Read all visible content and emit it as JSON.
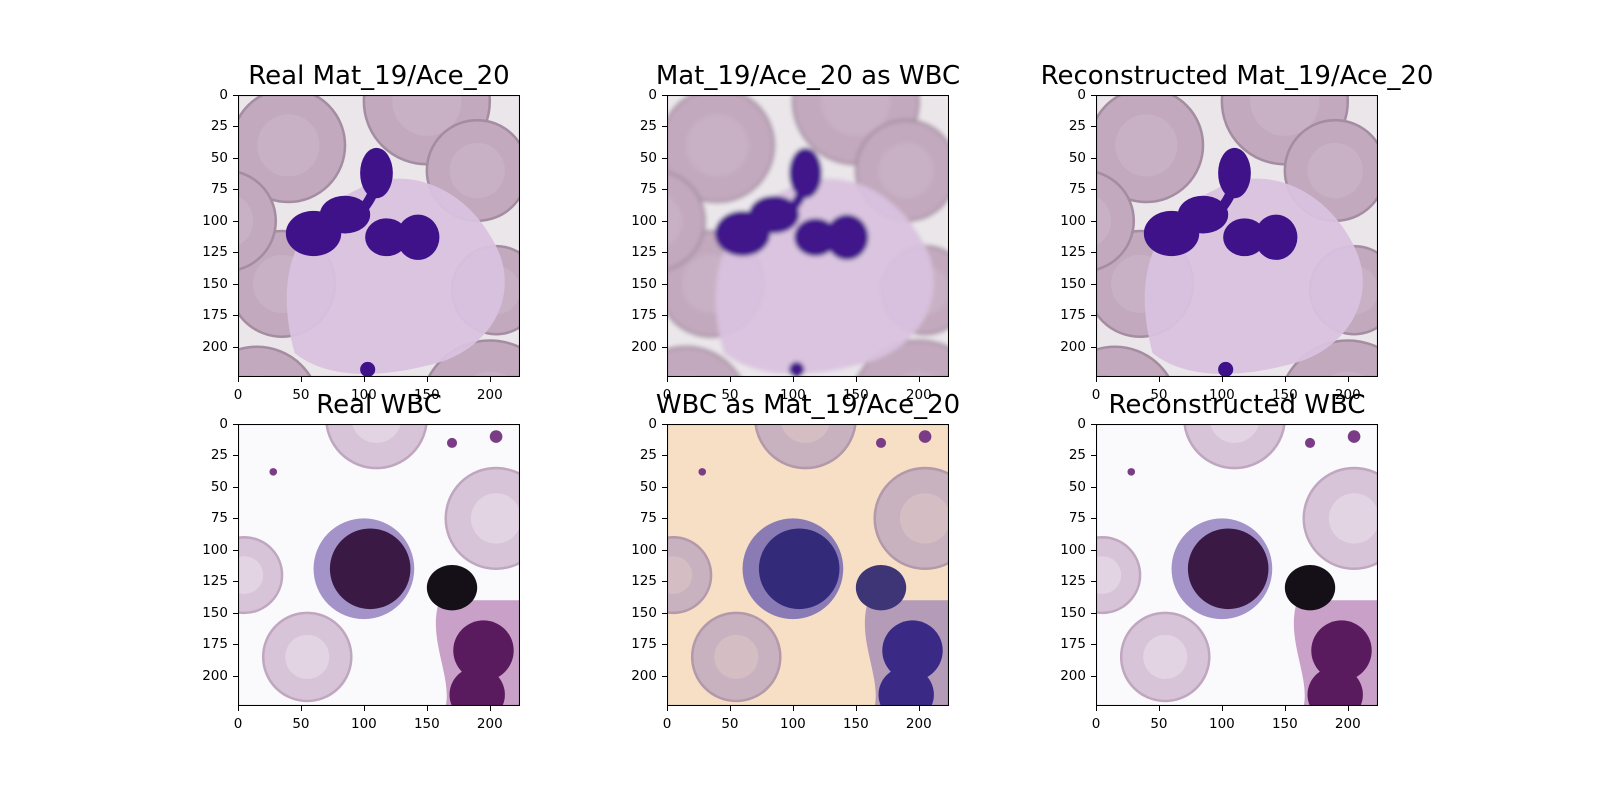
{
  "panels": [
    {
      "title": "Real Mat_19/Ace_20",
      "icon": "neutrophil-micrograph"
    },
    {
      "title": "Mat_19/Ace_20 as WBC",
      "icon": "neutrophil-micrograph-blurred"
    },
    {
      "title": "Reconstructed Mat_19/Ace_20",
      "icon": "neutrophil-micrograph"
    },
    {
      "title": "Real WBC",
      "icon": "lymphocyte-micrograph"
    },
    {
      "title": "WBC as Mat_19/Ace_20",
      "icon": "lymphocyte-micrograph-beige"
    },
    {
      "title": "Reconstructed WBC",
      "icon": "lymphocyte-micrograph"
    }
  ],
  "y_ticks": [
    "0",
    "25",
    "50",
    "75",
    "100",
    "125",
    "150",
    "175",
    "200"
  ],
  "x_ticks": [
    "0",
    "50",
    "100",
    "150",
    "200"
  ],
  "axis_range": [
    0,
    224
  ],
  "colors": {
    "mat_background": "#eae6ea",
    "rbc_fill": "#c2a9bd",
    "neutrophil_cytoplasm": "#d9c2df",
    "neutrophil_nucleus": "#3f128a",
    "wbc_background": "#fafafc",
    "wbc_beige_background": "#f7dfc6",
    "wbc_rbc_fill": "#d8c4d8",
    "lymphocyte_nucleus": "#3a1a44",
    "dark_cell": "#151018"
  }
}
